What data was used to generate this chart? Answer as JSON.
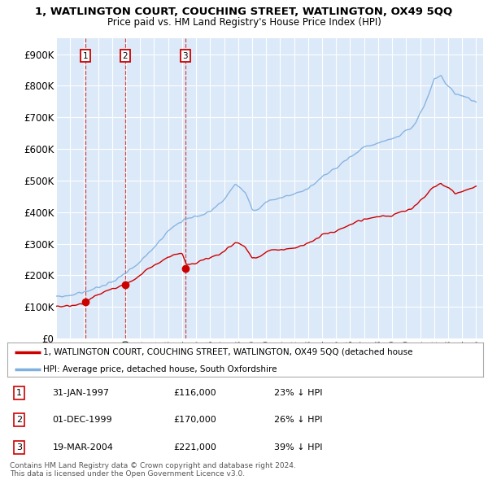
{
  "title": "1, WATLINGTON COURT, COUCHING STREET, WATLINGTON, OX49 5QQ",
  "subtitle": "Price paid vs. HM Land Registry's House Price Index (HPI)",
  "ylim": [
    0,
    950000
  ],
  "yticks": [
    0,
    100000,
    200000,
    300000,
    400000,
    500000,
    600000,
    700000,
    800000,
    900000
  ],
  "ytick_labels": [
    "£0",
    "£100K",
    "£200K",
    "£300K",
    "£400K",
    "£500K",
    "£600K",
    "£700K",
    "£800K",
    "£900K"
  ],
  "background_color": "#dce9f8",
  "figure_color": "#ffffff",
  "grid_color": "#ffffff",
  "red_line_color": "#cc0000",
  "blue_line_color": "#7fb0e0",
  "sale_points": [
    {
      "year": 1997.08,
      "price": 116000,
      "label": "1"
    },
    {
      "year": 1999.92,
      "price": 170000,
      "label": "2"
    },
    {
      "year": 2004.22,
      "price": 221000,
      "label": "3"
    }
  ],
  "legend_entries": [
    "1, WATLINGTON COURT, COUCHING STREET, WATLINGTON, OX49 5QQ (detached house",
    "HPI: Average price, detached house, South Oxfordshire"
  ],
  "table_rows": [
    {
      "num": "1",
      "date": "31-JAN-1997",
      "price": "£116,000",
      "hpi": "23% ↓ HPI"
    },
    {
      "num": "2",
      "date": "01-DEC-1999",
      "price": "£170,000",
      "hpi": "26% ↓ HPI"
    },
    {
      "num": "3",
      "date": "19-MAR-2004",
      "price": "£221,000",
      "hpi": "39% ↓ HPI"
    }
  ],
  "footer": "Contains HM Land Registry data © Crown copyright and database right 2024.\nThis data is licensed under the Open Government Licence v3.0."
}
